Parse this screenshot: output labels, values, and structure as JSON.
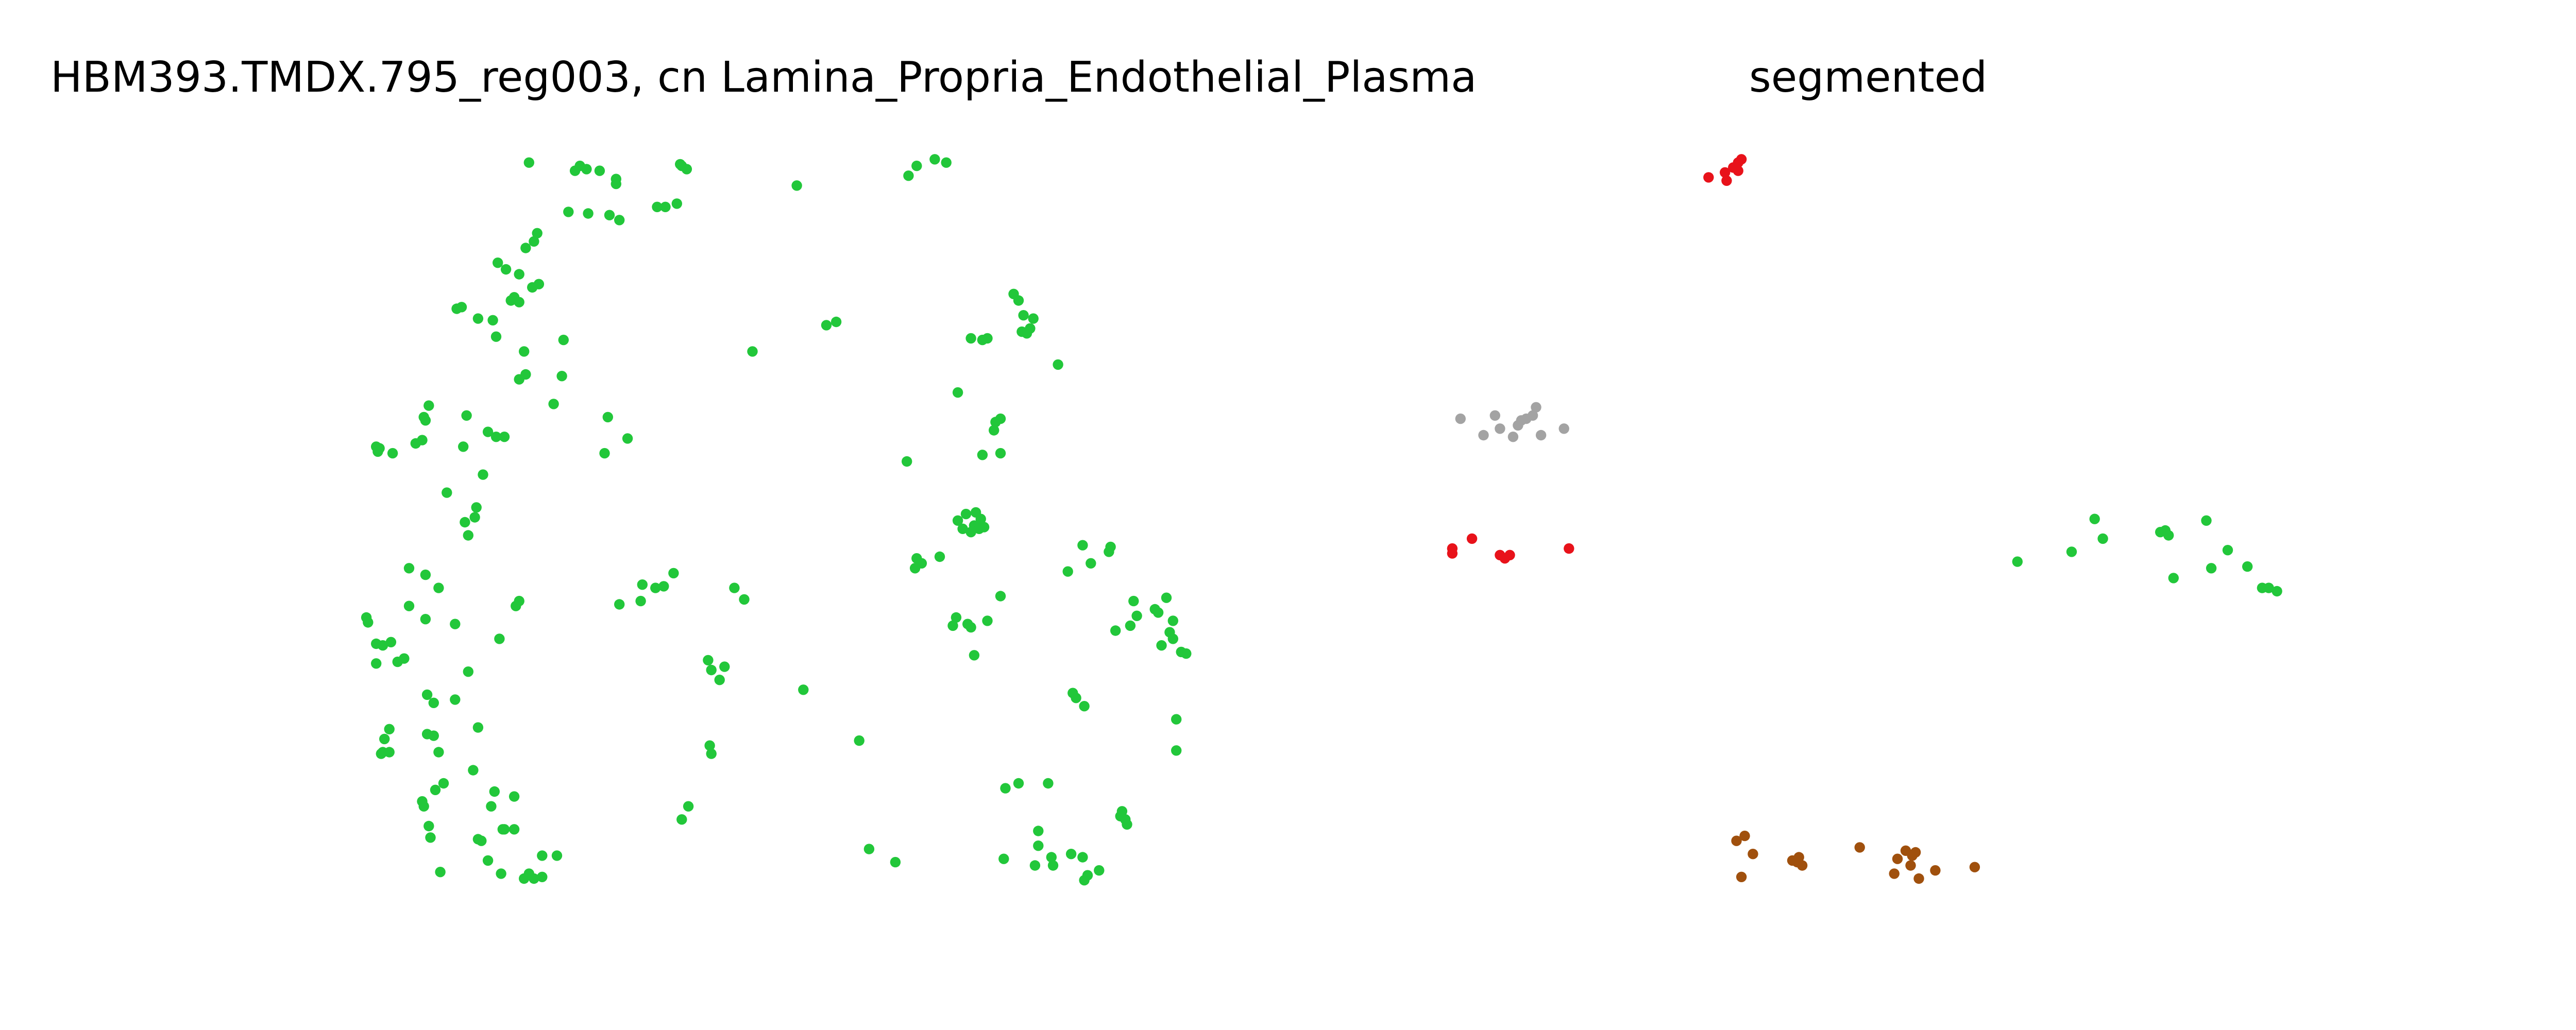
{
  "chart_data": [
    {
      "type": "scatter",
      "title": "HBM393.TMDX.795_reg003, cn Lamina_Propria_Endothelial_Plasma",
      "xlabel": "",
      "ylabel": "",
      "axes_visible": false,
      "grid": false,
      "series": [
        {
          "color": "#22c73a",
          "points": [
            [
              322,
              99
            ],
            [
              350,
              104
            ],
            [
              353,
              101
            ],
            [
              357,
              103
            ],
            [
              365,
              104
            ],
            [
              375,
              109
            ],
            [
              375,
              112
            ],
            [
              415,
              101
            ],
            [
              418,
              103
            ],
            [
              414,
              100
            ],
            [
              485,
              113
            ],
            [
              553,
              107
            ],
            [
              558,
              101
            ],
            [
              569,
              97
            ],
            [
              576,
              99
            ],
            [
              346,
              129
            ],
            [
              358,
              130
            ],
            [
              371,
              131
            ],
            [
              377,
              134
            ],
            [
              400,
              126
            ],
            [
              405,
              126
            ],
            [
              412,
              124
            ],
            [
              325,
              147
            ],
            [
              327,
              142
            ],
            [
              320,
              151
            ],
            [
              303,
              160
            ],
            [
              308,
              164
            ],
            [
              316,
              167
            ],
            [
              328,
              173
            ],
            [
              324,
              175
            ],
            [
              313,
              181
            ],
            [
              316,
              184
            ],
            [
              311,
              183
            ],
            [
              281,
              187
            ],
            [
              278,
              188
            ],
            [
              291,
              194
            ],
            [
              300,
              195
            ],
            [
              302,
              205
            ],
            [
              319,
              214
            ],
            [
              343,
              207
            ],
            [
              320,
              228
            ],
            [
              316,
              231
            ],
            [
              458,
              214
            ],
            [
              503,
              198
            ],
            [
              509,
              196
            ],
            [
              617,
              179
            ],
            [
              620,
              183
            ],
            [
              623,
              192
            ],
            [
              629,
              194
            ],
            [
              627,
              200
            ],
            [
              625,
              203
            ],
            [
              622,
              202
            ],
            [
              591,
              206
            ],
            [
              598,
              207
            ],
            [
              601,
              206
            ],
            [
              644,
              222
            ],
            [
              261,
              247
            ],
            [
              258,
              254
            ],
            [
              259,
              256
            ],
            [
              284,
              253
            ],
            [
              297,
              263
            ],
            [
              302,
              266
            ],
            [
              307,
              266
            ],
            [
              282,
              272
            ],
            [
              253,
              270
            ],
            [
              257,
              268
            ],
            [
              229,
              272
            ],
            [
              230,
              275
            ],
            [
              239,
              276
            ],
            [
              231,
              273
            ],
            [
              337,
              246
            ],
            [
              342,
              229
            ],
            [
              370,
              254
            ],
            [
              368,
              276
            ],
            [
              382,
              267
            ],
            [
              583,
              239
            ],
            [
              606,
              257
            ],
            [
              609,
              255
            ],
            [
              605,
              262
            ],
            [
              598,
              277
            ],
            [
              609,
              276
            ],
            [
              552,
              281
            ],
            [
              272,
              300
            ],
            [
              294,
              289
            ],
            [
              290,
              309
            ],
            [
              283,
              318
            ],
            [
              289,
              315
            ],
            [
              285,
              326
            ],
            [
              583,
              317
            ],
            [
              588,
              313
            ],
            [
              594,
              312
            ],
            [
              597,
              316
            ],
            [
              599,
              321
            ],
            [
              586,
              322
            ],
            [
              591,
              324
            ],
            [
              593,
              320
            ],
            [
              596,
              322
            ],
            [
              249,
              346
            ],
            [
              259,
              350
            ],
            [
              267,
              358
            ],
            [
              316,
              366
            ],
            [
              314,
              369
            ],
            [
              223,
              376
            ],
            [
              224,
              379
            ],
            [
              249,
              369
            ],
            [
              259,
              377
            ],
            [
              277,
              380
            ],
            [
              304,
              389
            ],
            [
              229,
              392
            ],
            [
              233,
              393
            ],
            [
              238,
              391
            ],
            [
              242,
              403
            ],
            [
              246,
              401
            ],
            [
              229,
              404
            ],
            [
              391,
              356
            ],
            [
              399,
              358
            ],
            [
              404,
              357
            ],
            [
              410,
              349
            ],
            [
              390,
              366
            ],
            [
              377,
              368
            ],
            [
              447,
              358
            ],
            [
              453,
              365
            ],
            [
              558,
              340
            ],
            [
              557,
              346
            ],
            [
              561,
              343
            ],
            [
              572,
              339
            ],
            [
              609,
              363
            ],
            [
              650,
              348
            ],
            [
              659,
              332
            ],
            [
              664,
              343
            ],
            [
              676,
              333
            ],
            [
              675,
              336
            ],
            [
              582,
              376
            ],
            [
              580,
              381
            ],
            [
              589,
              380
            ],
            [
              591,
              382
            ],
            [
              601,
              378
            ],
            [
              593,
              399
            ],
            [
              690,
              366
            ],
            [
              692,
              375
            ],
            [
              703,
              371
            ],
            [
              705,
              373
            ],
            [
              710,
              364
            ],
            [
              714,
              378
            ],
            [
              679,
              384
            ],
            [
              688,
              381
            ],
            [
              712,
              385
            ],
            [
              714,
              389
            ],
            [
              707,
              393
            ],
            [
              719,
              397
            ],
            [
              722,
              398
            ],
            [
              285,
              409
            ],
            [
              260,
              423
            ],
            [
              264,
              428
            ],
            [
              277,
              426
            ],
            [
              291,
              443
            ],
            [
              260,
              447
            ],
            [
              264,
              448
            ],
            [
              267,
              458
            ],
            [
              237,
              444
            ],
            [
              234,
              450
            ],
            [
              233,
              458
            ],
            [
              232,
              459
            ],
            [
              237,
              458
            ],
            [
              288,
              469
            ],
            [
              270,
              477
            ],
            [
              265,
              481
            ],
            [
              257,
              488
            ],
            [
              258,
              491
            ],
            [
              431,
              402
            ],
            [
              433,
              408
            ],
            [
              441,
              406
            ],
            [
              438,
              414
            ],
            [
              489,
              420
            ],
            [
              653,
              422
            ],
            [
              655,
              425
            ],
            [
              660,
              430
            ],
            [
              716,
              438
            ],
            [
              716,
              457
            ],
            [
              432,
              454
            ],
            [
              433,
              459
            ],
            [
              523,
              451
            ],
            [
              301,
              482
            ],
            [
              299,
              491
            ],
            [
              313,
              485
            ],
            [
              261,
              503
            ],
            [
              262,
              510
            ],
            [
              291,
              511
            ],
            [
              293,
              512
            ],
            [
              307,
              505
            ],
            [
              313,
              505
            ],
            [
              306,
              505
            ],
            [
              419,
              491
            ],
            [
              415,
              499
            ],
            [
              612,
              480
            ],
            [
              620,
              477
            ],
            [
              638,
              477
            ],
            [
              683,
              494
            ],
            [
              685,
              499
            ],
            [
              686,
              502
            ],
            [
              682,
              497
            ],
            [
              632,
              506
            ],
            [
              632,
              515
            ],
            [
              640,
              522
            ],
            [
              641,
              527
            ],
            [
              630,
              527
            ],
            [
              652,
              520
            ],
            [
              659,
              522
            ],
            [
              662,
              533
            ],
            [
              660,
              536
            ],
            [
              669,
              530
            ],
            [
              611,
              523
            ],
            [
              297,
              524
            ],
            [
              305,
              532
            ],
            [
              268,
              531
            ],
            [
              319,
              535
            ],
            [
              325,
              535
            ],
            [
              330,
              534
            ],
            [
              322,
              532
            ],
            [
              330,
              521
            ],
            [
              339,
              521
            ],
            [
              529,
              517
            ],
            [
              545,
              525
            ]
          ]
        }
      ]
    },
    {
      "type": "scatter",
      "title": "segmented",
      "xlabel": "",
      "ylabel": "",
      "axes_visible": false,
      "grid": false,
      "series": [
        {
          "color": "#e8121a",
          "points": [
            [
              1040,
              108
            ],
            [
              1050,
              105
            ],
            [
              1051,
              110
            ],
            [
              1055,
              102
            ],
            [
              1058,
              99
            ],
            [
              1060,
              97
            ],
            [
              1058,
              104
            ],
            [
              884,
              334
            ],
            [
              884,
              337
            ],
            [
              896,
              328
            ],
            [
              913,
              338
            ],
            [
              916,
              340
            ],
            [
              919,
              338
            ],
            [
              955,
              334
            ]
          ]
        },
        {
          "color": "#a3a3a3",
          "points": [
            [
              889,
              255
            ],
            [
              903,
              265
            ],
            [
              910,
              253
            ],
            [
              913,
              261
            ],
            [
              921,
              266
            ],
            [
              924,
              259
            ],
            [
              926,
              256
            ],
            [
              929,
              255
            ],
            [
              933,
              253
            ],
            [
              935,
              248
            ],
            [
              938,
              265
            ],
            [
              952,
              261
            ]
          ]
        },
        {
          "color": "#22c73a",
          "points": [
            [
              1228,
              342
            ],
            [
              1261,
              336
            ],
            [
              1275,
              316
            ],
            [
              1280,
              328
            ],
            [
              1315,
              324
            ],
            [
              1318,
              323
            ],
            [
              1320,
              326
            ],
            [
              1343,
              317
            ],
            [
              1346,
              346
            ],
            [
              1356,
              335
            ],
            [
              1368,
              345
            ],
            [
              1323,
              352
            ],
            [
              1377,
              358
            ],
            [
              1381,
              358
            ],
            [
              1386,
              360
            ]
          ]
        },
        {
          "color": "#a0500d",
          "points": [
            [
              1057,
              512
            ],
            [
              1062,
              509
            ],
            [
              1067,
              520
            ],
            [
              1060,
              534
            ],
            [
              1091,
              524
            ],
            [
              1095,
              522
            ],
            [
              1097,
              527
            ],
            [
              1094,
              525
            ],
            [
              1132,
              516
            ],
            [
              1155,
              523
            ],
            [
              1160,
              518
            ],
            [
              1164,
              521
            ],
            [
              1166,
              519
            ],
            [
              1163,
              527
            ],
            [
              1153,
              532
            ],
            [
              1168,
              535
            ],
            [
              1178,
              530
            ],
            [
              1202,
              528
            ]
          ]
        }
      ]
    }
  ]
}
